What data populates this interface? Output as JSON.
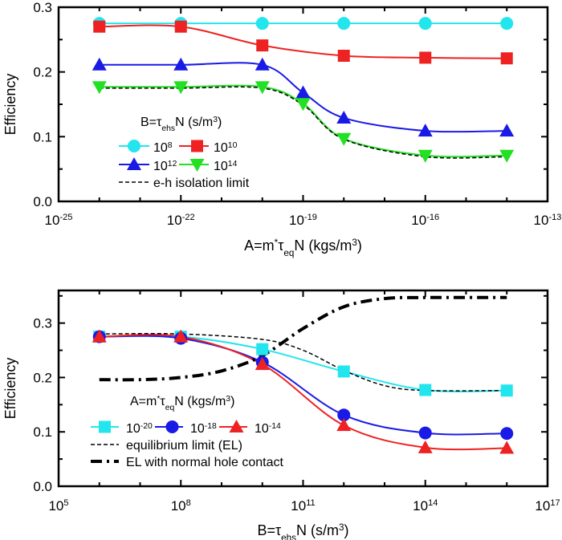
{
  "chart_data": [
    {
      "type": "line",
      "xscale": "log",
      "xlim": [
        1e-25,
        1e-13
      ],
      "ylim": [
        0,
        0.3
      ],
      "xticks": [
        -25,
        -22,
        -19,
        -16,
        -13
      ],
      "yticks": [
        "0.0",
        "0.1",
        "0.2",
        "0.3"
      ],
      "ylabel": "Efficiency",
      "xlabel": [
        {
          "t": "A=m"
        },
        {
          "t": "*",
          "s": "sup"
        },
        {
          "t": "τ"
        },
        {
          "t": "eq",
          "s": "sub"
        },
        {
          "t": "N (kgs/m"
        },
        {
          "t": "3",
          "s": "sup"
        },
        {
          "t": ")"
        }
      ],
      "legend_title": [
        {
          "t": "B=τ"
        },
        {
          "t": "ehs",
          "s": "sub"
        },
        {
          "t": "N (s/m"
        },
        {
          "t": "3",
          "s": "sup"
        },
        {
          "t": ")"
        }
      ],
      "legend_placement": "center-left",
      "series": [
        {
          "name": "10^8",
          "base": "10",
          "exp": "8",
          "color": "#22e5ee",
          "marker": "circle",
          "x": [
            1e-24,
            1e-22,
            1e-20,
            1e-18,
            1e-16,
            1e-14
          ],
          "y": [
            0.275,
            0.275,
            0.275,
            0.275,
            0.275,
            0.275
          ]
        },
        {
          "name": "10^10",
          "base": "10",
          "exp": "10",
          "color": "#ee2222",
          "marker": "square",
          "x": [
            1e-24,
            1e-22,
            1e-20,
            1e-18,
            1e-16,
            1e-14
          ],
          "y": [
            0.27,
            0.27,
            0.241,
            0.225,
            0.222,
            0.221
          ]
        },
        {
          "name": "10^12",
          "base": "10",
          "exp": "12",
          "color": "#1a1ae6",
          "marker": "triangle-up",
          "x": [
            1e-24,
            1e-22,
            1e-20,
            1e-19,
            1e-18,
            1e-16,
            1e-14
          ],
          "y": [
            0.211,
            0.211,
            0.211,
            0.168,
            0.129,
            0.109,
            0.109
          ]
        },
        {
          "name": "10^14",
          "base": "10",
          "exp": "14",
          "color": "#22e022",
          "marker": "triangle-down",
          "x": [
            1e-24,
            1e-22,
            1e-20,
            1e-19,
            1e-18,
            1e-16,
            1e-14
          ],
          "y": [
            0.177,
            0.177,
            0.177,
            0.151,
            0.097,
            0.071,
            0.071
          ]
        },
        {
          "name": "e-h isolation limit",
          "color": "#000000",
          "marker": "none",
          "dash": "dashed",
          "x": [
            1e-24,
            1e-22,
            1e-20,
            1e-19,
            1e-18,
            1e-16,
            1e-14
          ],
          "y": [
            0.175,
            0.175,
            0.175,
            0.149,
            0.096,
            0.069,
            0.069
          ]
        }
      ]
    },
    {
      "type": "line",
      "xscale": "log",
      "xlim": [
        100000.0,
        1e+17
      ],
      "ylim": [
        0,
        0.36
      ],
      "xticks": [
        5,
        8,
        11,
        14,
        17
      ],
      "yticks": [
        "0.0",
        "0.1",
        "0.2",
        "0.3"
      ],
      "ylabel": "Efficiency",
      "xlabel": [
        {
          "t": "B=τ"
        },
        {
          "t": "ehs",
          "s": "sub"
        },
        {
          "t": "N (s/m"
        },
        {
          "t": "3",
          "s": "sup"
        },
        {
          "t": ")"
        }
      ],
      "legend_title": [
        {
          "t": "A=m"
        },
        {
          "t": "*",
          "s": "sup"
        },
        {
          "t": "τ"
        },
        {
          "t": "eq",
          "s": "sub"
        },
        {
          "t": "N (kgs/m"
        },
        {
          "t": "3",
          "s": "sup"
        },
        {
          "t": ")"
        }
      ],
      "legend_placement": "bottom-left",
      "series": [
        {
          "name": "10^-20",
          "base": "10",
          "exp": "-20",
          "color": "#22e5ee",
          "marker": "square",
          "x": [
            1000000.0,
            100000000.0,
            10000000000.0,
            1000000000000.0,
            100000000000000.0,
            1e+16
          ],
          "y": [
            0.275,
            0.275,
            0.252,
            0.211,
            0.177,
            0.176
          ]
        },
        {
          "name": "10^-18",
          "base": "10",
          "exp": "-18",
          "color": "#1a1ae6",
          "marker": "circle",
          "x": [
            1000000.0,
            100000000.0,
            10000000000.0,
            1000000000000.0,
            100000000000000.0,
            1e+16
          ],
          "y": [
            0.275,
            0.272,
            0.228,
            0.131,
            0.098,
            0.097
          ]
        },
        {
          "name": "10^-14",
          "base": "10",
          "exp": "-14",
          "color": "#ee2222",
          "marker": "triangle-up",
          "x": [
            1000000.0,
            100000000.0,
            10000000000.0,
            1000000000000.0,
            100000000000000.0,
            1e+16
          ],
          "y": [
            0.275,
            0.275,
            0.224,
            0.112,
            0.071,
            0.07
          ]
        },
        {
          "name": "equilibrium limit (EL)",
          "color": "#000000",
          "marker": "none",
          "dash": "dashed",
          "x": [
            1000000.0,
            100000000.0,
            10000000000.0,
            100000000000.0,
            1000000000000.0,
            10000000000000.0,
            100000000000000.0,
            1e+16
          ],
          "y": [
            0.28,
            0.28,
            0.27,
            0.25,
            0.213,
            0.185,
            0.176,
            0.176
          ]
        },
        {
          "name": "EL with normal hole contact",
          "color": "#000000",
          "marker": "none",
          "dash": "dashdot",
          "x": [
            1000000.0,
            10000000.0,
            100000000.0,
            1000000000.0,
            10000000000.0,
            100000000000.0,
            1000000000000.0,
            10000000000000.0,
            100000000000000.0,
            1e+16
          ],
          "y": [
            0.196,
            0.196,
            0.2,
            0.212,
            0.24,
            0.29,
            0.33,
            0.345,
            0.347,
            0.347
          ]
        }
      ]
    }
  ]
}
